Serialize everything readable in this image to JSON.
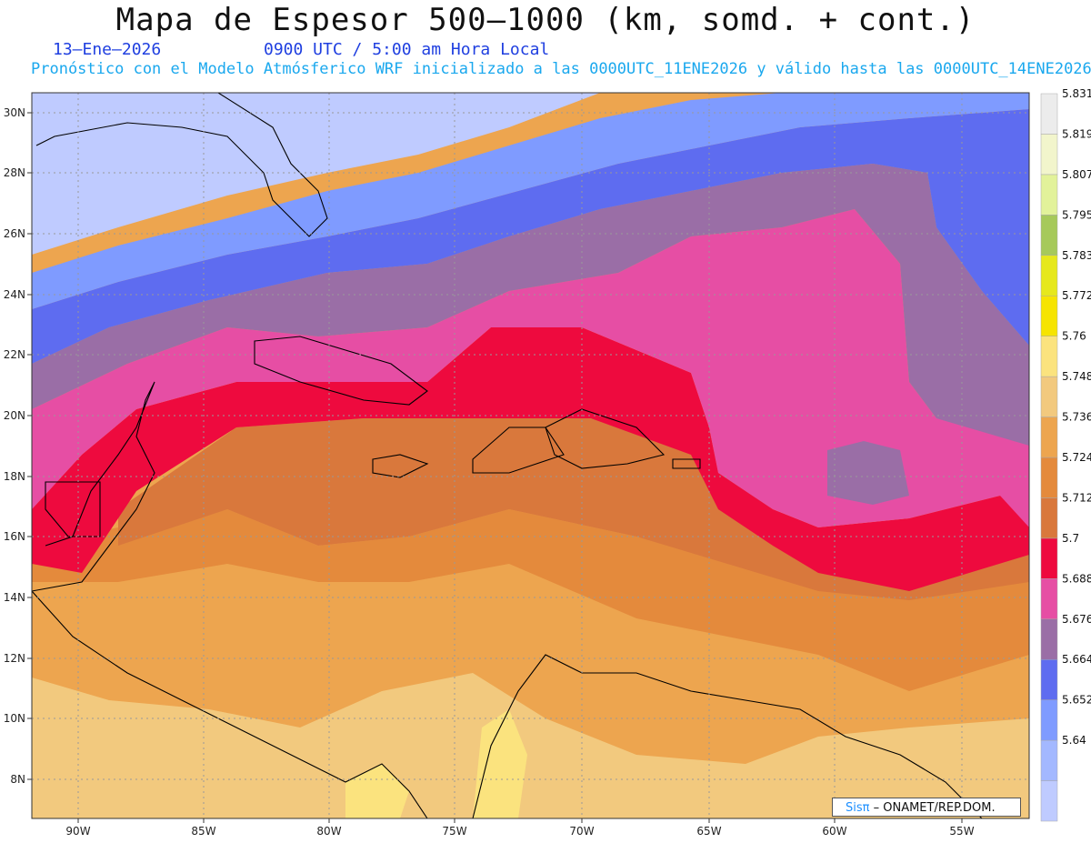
{
  "title": "Mapa de Espesor 500—1000 (km, somd. + cont.)",
  "date": "13–Ene—2026",
  "time": "0900 UTC / 5:00 am Hora Local",
  "subtitle": "Pronóstico con el Modelo Atmósferico WRF inicializado a las 0000UTC_11ENE2026 y válido hasta las  0000UTC_14ENE2026",
  "credit": {
    "sis": "Sisπ",
    "rest": "– ONAMET/REP.DOM."
  },
  "map": {
    "lon_ticks": [
      "90W",
      "85W",
      "80W",
      "75W",
      "70W",
      "65W",
      "60W",
      "55W"
    ],
    "lat_ticks": [
      "30N",
      "28N",
      "26N",
      "24N",
      "22N",
      "20N",
      "18N",
      "16N",
      "14N",
      "12N",
      "10N",
      "8N"
    ],
    "legend": [
      {
        "label": "",
        "color": "#bfcbff"
      },
      {
        "label": "5.64",
        "color": "#a3b8ff"
      },
      {
        "label": "5.652",
        "color": "#7f9bff"
      },
      {
        "label": "5.664",
        "color": "#5e6cf0"
      },
      {
        "label": "5.676",
        "color": "#9a6ea6"
      },
      {
        "label": "5.688",
        "color": "#e64ea4"
      },
      {
        "label": "5.7",
        "color": "#ee0a3e"
      },
      {
        "label": "5.712",
        "color": "#d9783c"
      },
      {
        "label": "5.724",
        "color": "#e48a3c"
      },
      {
        "label": "5.736",
        "color": "#eda54f"
      },
      {
        "label": "5.748",
        "color": "#f2c97e"
      },
      {
        "label": "5.76",
        "color": "#fbe37e"
      },
      {
        "label": "5.772",
        "color": "#f6e400"
      },
      {
        "label": "5.783",
        "color": "#e6e81c"
      },
      {
        "label": "5.795",
        "color": "#a6c95a"
      },
      {
        "label": "5.807",
        "color": "#e2f29a"
      },
      {
        "label": "5.819",
        "color": "#f2f5cc"
      },
      {
        "label": "5.831",
        "color": "#ececec"
      }
    ]
  }
}
